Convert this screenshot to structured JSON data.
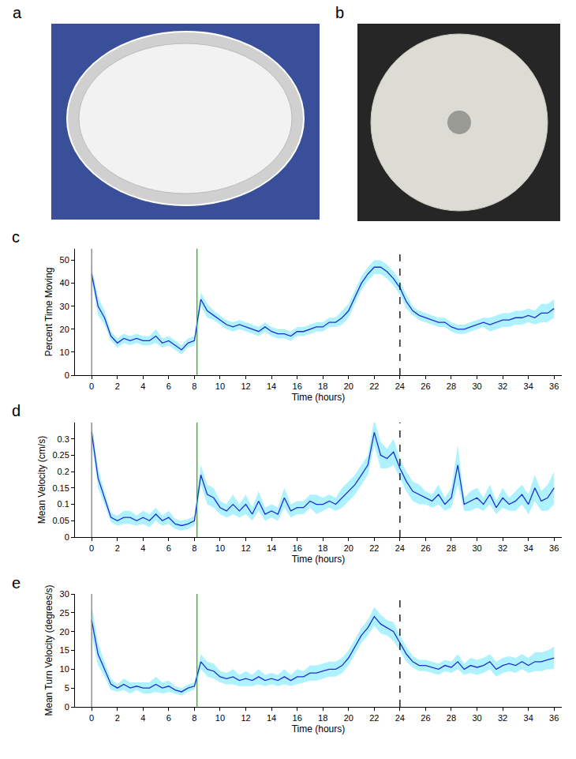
{
  "panel_labels": [
    "a",
    "b"
  ],
  "chart_data": [
    {
      "panel": "c",
      "type": "line",
      "x_label": "Time (hours)",
      "y_label": "Percent Time Moving",
      "color": "#1f2fd0",
      "grid": false,
      "xlim": [
        -1.3,
        36.6
      ],
      "xticks": [
        0,
        2,
        4,
        6,
        8,
        10,
        12,
        14,
        16,
        18,
        20,
        22,
        24,
        26,
        28,
        30,
        32,
        34,
        36
      ],
      "ylim": [
        0,
        55
      ],
      "yticks": [
        0,
        10,
        20,
        30,
        40,
        50
      ],
      "events": [
        {
          "x": 0,
          "color": "#808080",
          "line_style": "solid"
        },
        {
          "x": 8.2,
          "color": "#00cc00",
          "line_style": "solid"
        },
        {
          "x": 24,
          "color": "#000000",
          "line_style": "dash"
        }
      ],
      "x": [
        0,
        0.5,
        1,
        1.5,
        2,
        2.5,
        3,
        3.5,
        4,
        4.5,
        5,
        5.5,
        6,
        6.5,
        7,
        7.5,
        8,
        8.5,
        9,
        9.5,
        10,
        10.5,
        11,
        11.5,
        12,
        12.5,
        13,
        13.5,
        14,
        14.5,
        15,
        15.5,
        16,
        16.5,
        17,
        17.5,
        18,
        18.5,
        19,
        19.5,
        20,
        20.5,
        21,
        21.5,
        22,
        22.5,
        23,
        23.5,
        24,
        24.5,
        25,
        25.5,
        26,
        26.5,
        27,
        27.5,
        28,
        28.5,
        29,
        29.5,
        30,
        30.5,
        31,
        31.5,
        32,
        32.5,
        33,
        33.5,
        34,
        34.5,
        35,
        35.5,
        36
      ],
      "values": [
        44,
        30,
        25,
        17,
        14,
        16,
        15,
        16,
        15,
        15,
        17,
        14,
        15,
        13,
        11,
        14,
        15,
        33,
        28,
        26,
        24,
        22,
        21,
        22,
        21,
        20,
        19,
        21,
        19,
        18,
        18,
        17,
        19,
        19,
        20,
        21,
        21,
        23,
        23,
        25,
        28,
        34,
        40,
        44,
        47,
        47,
        45,
        42,
        38,
        32,
        28,
        26,
        25,
        24,
        23,
        23,
        21,
        20,
        20,
        21,
        22,
        23,
        22,
        23,
        24,
        24,
        25,
        25,
        26,
        25,
        27,
        27,
        29
      ],
      "error": [
        3,
        4,
        3,
        2,
        2,
        2,
        2,
        2,
        2,
        2,
        3,
        2,
        2,
        2,
        2,
        2,
        2,
        3,
        3,
        2,
        2,
        2,
        2,
        2,
        2,
        2,
        2,
        2,
        2,
        2,
        2,
        2,
        2,
        2,
        2,
        2,
        2,
        2,
        2,
        3,
        3,
        3,
        3,
        3,
        3,
        3,
        3,
        3,
        3,
        3,
        2,
        2,
        2,
        2,
        2,
        2,
        2,
        2,
        2,
        2,
        2,
        2,
        3,
        3,
        3,
        3,
        3,
        3,
        3,
        3,
        4,
        4,
        4
      ]
    },
    {
      "panel": "d",
      "type": "line",
      "x_label": "Time (hours)",
      "y_label": "Mean Velocity (cm/s)",
      "color": "#1f2fd0",
      "grid": false,
      "xlim": [
        -1.3,
        36.6
      ],
      "xticks": [
        0,
        2,
        4,
        6,
        8,
        10,
        12,
        14,
        16,
        18,
        20,
        22,
        24,
        26,
        28,
        30,
        32,
        34,
        36
      ],
      "ylim": [
        0,
        0.35
      ],
      "yticks": [
        0,
        0.05,
        0.1,
        0.15,
        0.2,
        0.25,
        0.3
      ],
      "events": [
        {
          "x": 0,
          "color": "#808080",
          "line_style": "solid"
        },
        {
          "x": 8.2,
          "color": "#00cc00",
          "line_style": "solid"
        },
        {
          "x": 24,
          "color": "#000000",
          "line_style": "dash"
        }
      ],
      "x": [
        0,
        0.5,
        1,
        1.5,
        2,
        2.5,
        3,
        3.5,
        4,
        4.5,
        5,
        5.5,
        6,
        6.5,
        7,
        7.5,
        8,
        8.5,
        9,
        9.5,
        10,
        10.5,
        11,
        11.5,
        12,
        12.5,
        13,
        13.5,
        14,
        14.5,
        15,
        15.5,
        16,
        16.5,
        17,
        17.5,
        18,
        18.5,
        19,
        19.5,
        20,
        20.5,
        21,
        21.5,
        22,
        22.5,
        23,
        23.5,
        24,
        24.5,
        25,
        25.5,
        26,
        26.5,
        27,
        27.5,
        28,
        28.5,
        29,
        29.5,
        30,
        30.5,
        31,
        31.5,
        32,
        32.5,
        33,
        33.5,
        34,
        34.5,
        35,
        35.5,
        36
      ],
      "values": [
        0.32,
        0.18,
        0.12,
        0.06,
        0.05,
        0.06,
        0.06,
        0.05,
        0.06,
        0.05,
        0.07,
        0.05,
        0.06,
        0.04,
        0.035,
        0.04,
        0.05,
        0.19,
        0.13,
        0.12,
        0.09,
        0.08,
        0.1,
        0.08,
        0.1,
        0.07,
        0.11,
        0.07,
        0.08,
        0.07,
        0.12,
        0.08,
        0.09,
        0.09,
        0.11,
        0.1,
        0.1,
        0.11,
        0.1,
        0.12,
        0.14,
        0.16,
        0.19,
        0.22,
        0.32,
        0.25,
        0.24,
        0.26,
        0.21,
        0.17,
        0.14,
        0.13,
        0.12,
        0.11,
        0.13,
        0.1,
        0.12,
        0.22,
        0.1,
        0.11,
        0.12,
        0.1,
        0.13,
        0.09,
        0.12,
        0.1,
        0.11,
        0.13,
        0.1,
        0.15,
        0.11,
        0.12,
        0.15
      ],
      "error": [
        0.03,
        0.03,
        0.02,
        0.015,
        0.015,
        0.02,
        0.02,
        0.015,
        0.02,
        0.02,
        0.02,
        0.015,
        0.02,
        0.015,
        0.015,
        0.015,
        0.015,
        0.03,
        0.03,
        0.03,
        0.02,
        0.02,
        0.03,
        0.02,
        0.03,
        0.02,
        0.03,
        0.02,
        0.02,
        0.02,
        0.03,
        0.02,
        0.02,
        0.02,
        0.02,
        0.03,
        0.02,
        0.02,
        0.02,
        0.03,
        0.03,
        0.03,
        0.03,
        0.03,
        0.04,
        0.04,
        0.03,
        0.04,
        0.03,
        0.03,
        0.03,
        0.03,
        0.02,
        0.02,
        0.03,
        0.02,
        0.03,
        0.06,
        0.02,
        0.03,
        0.03,
        0.02,
        0.03,
        0.02,
        0.03,
        0.02,
        0.03,
        0.03,
        0.03,
        0.04,
        0.03,
        0.04,
        0.05
      ]
    },
    {
      "panel": "e",
      "type": "line",
      "x_label": "Time (hours)",
      "y_label": "Mean Turn Velocity (degrees/s)",
      "color": "#1f2fd0",
      "grid": false,
      "xlim": [
        -1.3,
        36.6
      ],
      "xticks": [
        0,
        2,
        4,
        6,
        8,
        10,
        12,
        14,
        16,
        18,
        20,
        22,
        24,
        26,
        28,
        30,
        32,
        34,
        36
      ],
      "ylim": [
        0,
        30
      ],
      "yticks": [
        0,
        5,
        10,
        15,
        20,
        25,
        30
      ],
      "events": [
        {
          "x": 0,
          "color": "#808080",
          "line_style": "solid"
        },
        {
          "x": 8.2,
          "color": "#00cc00",
          "line_style": "solid"
        },
        {
          "x": 24,
          "color": "#000000",
          "line_style": "dash"
        }
      ],
      "x": [
        0,
        0.5,
        1,
        1.5,
        2,
        2.5,
        3,
        3.5,
        4,
        4.5,
        5,
        5.5,
        6,
        6.5,
        7,
        7.5,
        8,
        8.5,
        9,
        9.5,
        10,
        10.5,
        11,
        11.5,
        12,
        12.5,
        13,
        13.5,
        14,
        14.5,
        15,
        15.5,
        16,
        16.5,
        17,
        17.5,
        18,
        18.5,
        19,
        19.5,
        20,
        20.5,
        21,
        21.5,
        22,
        22.5,
        23,
        23.5,
        24,
        24.5,
        25,
        25.5,
        26,
        26.5,
        27,
        27.5,
        28,
        28.5,
        29,
        29.5,
        30,
        30.5,
        31,
        31.5,
        32,
        32.5,
        33,
        33.5,
        34,
        34.5,
        35,
        35.5,
        36
      ],
      "values": [
        23,
        14,
        10,
        6,
        5,
        6,
        5,
        5.5,
        5,
        5,
        6,
        5,
        5.5,
        4.5,
        4,
        5,
        5.5,
        12,
        10,
        9.5,
        8,
        7.5,
        8,
        7,
        7.5,
        7,
        8,
        7,
        7.5,
        7,
        8,
        7,
        8,
        8,
        9,
        9,
        9.5,
        10,
        10,
        11,
        13,
        16,
        19,
        21,
        24,
        22,
        21,
        20,
        17,
        14,
        12,
        11,
        11,
        10.5,
        10,
        11,
        10.5,
        12,
        10,
        11,
        10.5,
        11,
        12,
        10,
        11,
        11.5,
        11,
        12,
        11,
        12,
        12,
        12.5,
        13
      ],
      "error": [
        4,
        3,
        2,
        1.5,
        1,
        1.5,
        1.5,
        1,
        1.5,
        1.5,
        2,
        1.5,
        1.5,
        1,
        1,
        1,
        1,
        2,
        2,
        2,
        1.5,
        1.5,
        2,
        1.5,
        2,
        1.5,
        2,
        1.5,
        1.5,
        1.5,
        2,
        1.5,
        2,
        1.5,
        2,
        2,
        2,
        2,
        2,
        2,
        2,
        2,
        2,
        2,
        2.5,
        2.5,
        2,
        2.5,
        2,
        2,
        1.5,
        1.5,
        1.5,
        1.5,
        1.5,
        1.5,
        1.5,
        2,
        1.5,
        2,
        2,
        2,
        2,
        2,
        2,
        2,
        2,
        2,
        2,
        2.5,
        2.5,
        2.5,
        3
      ]
    }
  ]
}
